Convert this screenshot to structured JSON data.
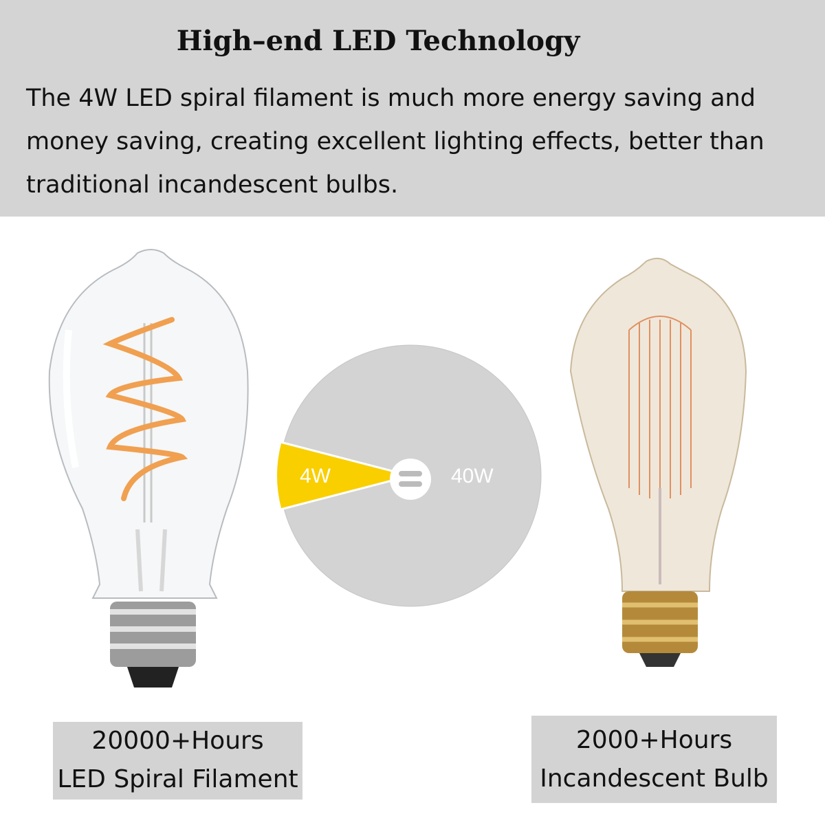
{
  "header": {
    "title": "High–end LED Technology",
    "description": "The 4W LED spiral filament is much more energy saving and money saving, creating excellent lighting effects, better than traditional incandescent bulbs."
  },
  "comparison": {
    "led_wattage": "4W",
    "incandescent_wattage": "40W",
    "equals_icon": "equals-icon",
    "led_color": "#F9CF00",
    "circle_color": "#D3D3D3"
  },
  "left_bulb": {
    "hours": "20000+Hours",
    "name": "LED Spiral Filament"
  },
  "right_bulb": {
    "hours": "2000+Hours",
    "name": "Incandescent Bulb"
  }
}
